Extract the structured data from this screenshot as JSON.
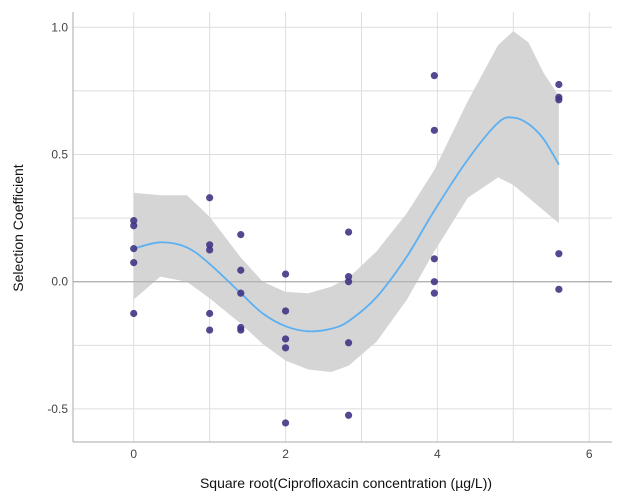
{
  "chart_data": {
    "type": "scatter",
    "xlabel": "Square root(Ciprofloxacin concentration (µg/L))",
    "ylabel": "Selection Coefficient",
    "xlim": [
      -0.8,
      6.3
    ],
    "ylim": [
      -0.63,
      1.06
    ],
    "xticks": [
      0,
      2,
      4,
      6
    ],
    "yticks": [
      -0.5,
      0.0,
      0.5,
      1.0
    ],
    "xtick_labels": [
      "0",
      "2",
      "4",
      "6"
    ],
    "ytick_labels": [
      "-0.5",
      "0.0",
      "0.5",
      "1.0"
    ],
    "grid": true,
    "reference_line_y": 0,
    "colors": {
      "points": "#3f3585",
      "trend": "#5cb0f2",
      "band": "#d3d3d3",
      "grid": "#dedede",
      "reference": "#b3b3b3",
      "axis": "#aaaaaa"
    },
    "points": [
      {
        "x": 0,
        "y": 0.24
      },
      {
        "x": 0,
        "y": 0.22
      },
      {
        "x": 0,
        "y": 0.13
      },
      {
        "x": 0,
        "y": 0.075
      },
      {
        "x": 0,
        "y": -0.125
      },
      {
        "x": 1,
        "y": 0.33
      },
      {
        "x": 1,
        "y": 0.145
      },
      {
        "x": 1,
        "y": 0.125
      },
      {
        "x": 1,
        "y": -0.125
      },
      {
        "x": 1,
        "y": -0.19
      },
      {
        "x": 1.41,
        "y": 0.185
      },
      {
        "x": 1.41,
        "y": 0.045
      },
      {
        "x": 1.41,
        "y": -0.045
      },
      {
        "x": 1.41,
        "y": -0.18
      },
      {
        "x": 1.41,
        "y": -0.19
      },
      {
        "x": 2,
        "y": 0.03
      },
      {
        "x": 2,
        "y": -0.115
      },
      {
        "x": 2,
        "y": -0.225
      },
      {
        "x": 2,
        "y": -0.26
      },
      {
        "x": 2,
        "y": -0.555
      },
      {
        "x": 2.83,
        "y": 0.195
      },
      {
        "x": 2.83,
        "y": 0.02
      },
      {
        "x": 2.83,
        "y": 0.0
      },
      {
        "x": 2.83,
        "y": -0.24
      },
      {
        "x": 2.83,
        "y": -0.525
      },
      {
        "x": 3.96,
        "y": 0.81
      },
      {
        "x": 3.96,
        "y": 0.595
      },
      {
        "x": 3.96,
        "y": 0.09
      },
      {
        "x": 3.96,
        "y": 0.0
      },
      {
        "x": 3.96,
        "y": -0.045
      },
      {
        "x": 5.6,
        "y": 0.775
      },
      {
        "x": 5.6,
        "y": 0.725
      },
      {
        "x": 5.6,
        "y": 0.715
      },
      {
        "x": 5.6,
        "y": 0.11
      },
      {
        "x": 5.6,
        "y": -0.03
      }
    ],
    "trend": {
      "x": [
        0,
        0.35,
        0.7,
        1.0,
        1.41,
        1.7,
        2.0,
        2.3,
        2.6,
        2.83,
        3.2,
        3.6,
        3.96,
        4.4,
        4.8,
        5.0,
        5.2,
        5.4,
        5.6
      ],
      "y": [
        0.13,
        0.155,
        0.135,
        0.07,
        -0.045,
        -0.125,
        -0.175,
        -0.195,
        -0.185,
        -0.155,
        -0.06,
        0.1,
        0.28,
        0.48,
        0.625,
        0.645,
        0.62,
        0.56,
        0.46
      ],
      "lower": [
        -0.07,
        0.02,
        0.0,
        -0.065,
        -0.165,
        -0.245,
        -0.31,
        -0.345,
        -0.355,
        -0.33,
        -0.235,
        -0.07,
        0.12,
        0.33,
        0.41,
        0.38,
        0.33,
        0.28,
        0.23
      ],
      "upper": [
        0.35,
        0.34,
        0.34,
        0.255,
        0.095,
        0.0,
        -0.04,
        -0.045,
        -0.02,
        0.015,
        0.12,
        0.27,
        0.44,
        0.71,
        0.93,
        0.985,
        0.94,
        0.82,
        0.73
      ]
    }
  }
}
